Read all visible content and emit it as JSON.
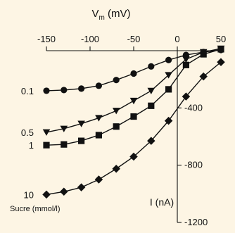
{
  "chart_data": {
    "type": "line",
    "title": "",
    "xlabel": "Vm (mV)",
    "xlabel_main": "V",
    "xlabel_sub": "m",
    "xlabel_unit": " (mV)",
    "ylabel": "I (nA)",
    "x_ticks": [
      -150,
      -100,
      -50,
      0,
      50
    ],
    "y_ticks": [
      -400,
      -800,
      -1200
    ],
    "xlim": [
      -150,
      50
    ],
    "ylim": [
      -1200,
      0
    ],
    "x_axis_position": "top",
    "y_axis_position": "at x = 0",
    "grid": false,
    "legend": "series labels at left of each curve",
    "legend_title": "Sucre (mmol/l)",
    "colors": {
      "background": "#fdf5e4",
      "ink": "#111111"
    },
    "series": [
      {
        "name": "0.1",
        "marker": "circle",
        "x": [
          -150,
          -130,
          -110,
          -90,
          -70,
          -50,
          -30,
          -10,
          10,
          30,
          50
        ],
        "y": [
          -280,
          -275,
          -265,
          -245,
          -205,
          -160,
          -110,
          -65,
          -30,
          -10,
          5
        ]
      },
      {
        "name": "0.5",
        "marker": "triangle-down",
        "x": [
          -150,
          -130,
          -110,
          -90,
          -70,
          -50,
          -30,
          -10,
          10,
          30,
          50
        ],
        "y": [
          -570,
          -545,
          -510,
          -470,
          -420,
          -350,
          -280,
          -170,
          -60,
          -10,
          15
        ]
      },
      {
        "name": "1",
        "marker": "square",
        "x": [
          -150,
          -130,
          -110,
          -90,
          -70,
          -50,
          -30,
          -10,
          10,
          30,
          50
        ],
        "y": [
          -660,
          -655,
          -630,
          -590,
          -530,
          -460,
          -385,
          -270,
          -100,
          -25,
          10
        ]
      },
      {
        "name": "10",
        "marker": "diamond",
        "x": [
          -150,
          -130,
          -110,
          -90,
          -70,
          -50,
          -30,
          -10,
          10,
          30,
          50
        ],
        "y": [
          -1005,
          -985,
          -955,
          -900,
          -825,
          -740,
          -630,
          -490,
          -320,
          -180,
          -80
        ]
      }
    ]
  }
}
